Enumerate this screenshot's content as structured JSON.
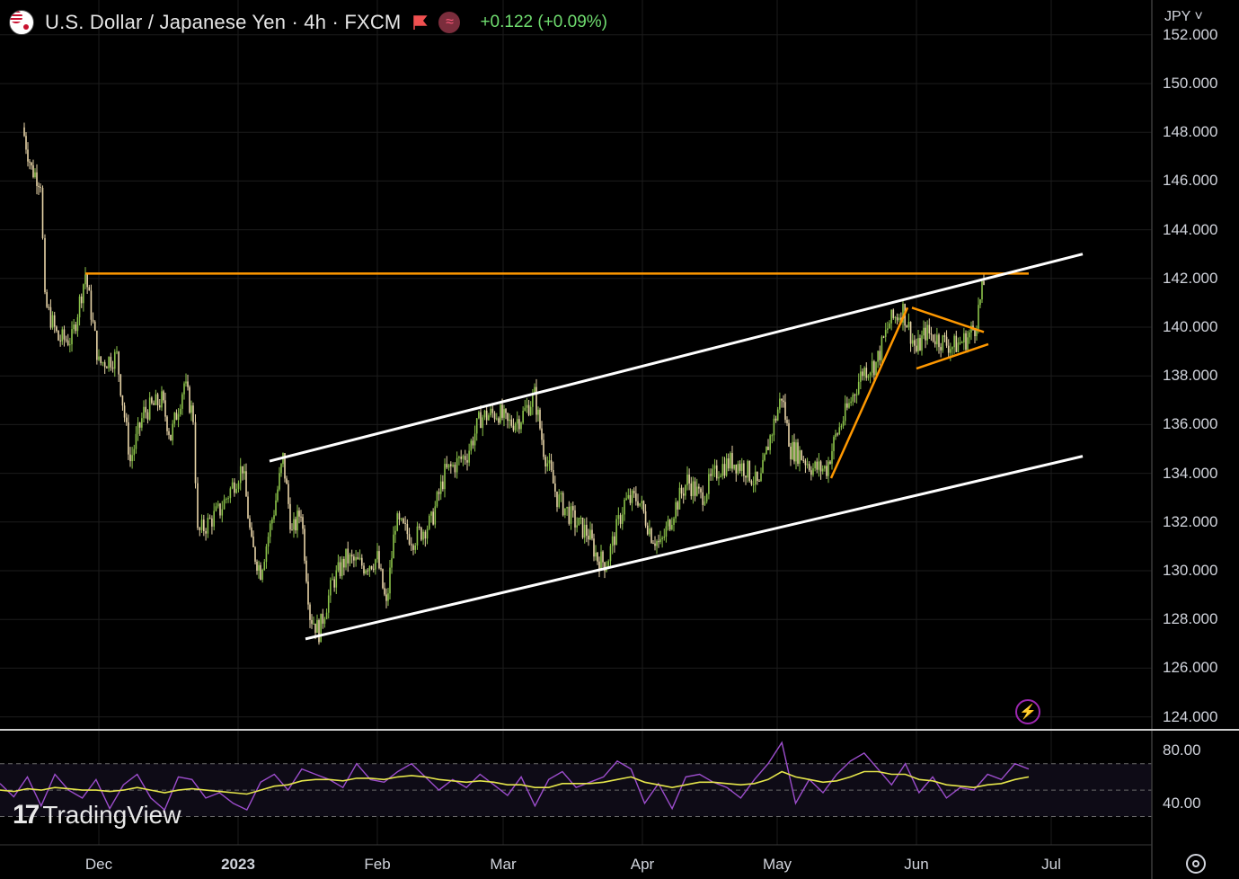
{
  "header": {
    "title": "U.S. Dollar / Japanese Yen · 4h · FXCM",
    "change": "+0.122 (+0.09%)",
    "currency": "JPY",
    "currency_chevron": "˅",
    "flag_icon": "flag-icon",
    "indicator_icon": "wave-icon"
  },
  "colors": {
    "background": "#000000",
    "up_candle": "#8bc34a",
    "down_candle": "#e8d5a8",
    "channel_lines": "#ffffff",
    "pattern_lines": "#ff9800",
    "rsi_line": "#9c4dcc",
    "rsi_ma": "#e5e54b",
    "change_text": "#6fdc6f"
  },
  "price_axis": {
    "labels": [
      "152.000",
      "150.000",
      "148.000",
      "146.000",
      "144.000",
      "142.000",
      "140.000",
      "138.000",
      "136.000",
      "134.000",
      "132.000",
      "130.000",
      "128.000",
      "126.000",
      "124.000"
    ]
  },
  "rsi_axis": {
    "labels": [
      "80.00",
      "40.00"
    ]
  },
  "time_axis": {
    "labels": [
      "Dec",
      "2023",
      "Feb",
      "Mar",
      "Apr",
      "May",
      "Jun",
      "Jul"
    ]
  },
  "branding": {
    "logo_mark": "17",
    "logo_text": "TradingView"
  },
  "chart_data": [
    {
      "type": "line",
      "title": "U.S. Dollar / Japanese Yen · 4h · FXCM",
      "xlabel": "",
      "ylabel": "",
      "x_labels": [
        "Dec",
        "2023",
        "Feb",
        "Mar",
        "Apr",
        "May",
        "Jun",
        "Jul"
      ],
      "ylim": [
        123.5,
        152.5
      ],
      "grid": true,
      "series": [
        {
          "values": [
            {
              "x": "2022-11-14",
              "y": 148.2
            },
            {
              "x": "2022-11-16",
              "y": 146.5
            },
            {
              "x": "2022-11-18",
              "y": 146.0
            },
            {
              "x": "2022-11-19",
              "y": 141.0
            },
            {
              "x": "2022-11-22",
              "y": 139.5
            },
            {
              "x": "2022-11-25",
              "y": 139.5
            },
            {
              "x": "2022-11-28",
              "y": 142.2
            },
            {
              "x": "2022-12-01",
              "y": 138.5
            },
            {
              "x": "2022-12-05",
              "y": 138.8
            },
            {
              "x": "2022-12-08",
              "y": 134.5
            },
            {
              "x": "2022-12-11",
              "y": 136.5
            },
            {
              "x": "2022-12-15",
              "y": 137.0
            },
            {
              "x": "2022-12-17",
              "y": 135.5
            },
            {
              "x": "2022-12-20",
              "y": 137.7
            },
            {
              "x": "2022-12-22",
              "y": 136.3
            },
            {
              "x": "2022-12-23",
              "y": 131.5
            },
            {
              "x": "2022-12-28",
              "y": 132.5
            },
            {
              "x": "2023-01-02",
              "y": 134.3
            },
            {
              "x": "2023-01-04",
              "y": 131.0
            },
            {
              "x": "2023-01-06",
              "y": 130.0
            },
            {
              "x": "2023-01-09",
              "y": 132.5
            },
            {
              "x": "2023-01-11",
              "y": 134.6
            },
            {
              "x": "2023-01-13",
              "y": 131.5
            },
            {
              "x": "2023-01-15",
              "y": 132.5
            },
            {
              "x": "2023-01-17",
              "y": 128.2
            },
            {
              "x": "2023-01-19",
              "y": 127.5
            },
            {
              "x": "2023-01-22",
              "y": 129.5
            },
            {
              "x": "2023-01-25",
              "y": 130.5
            },
            {
              "x": "2023-01-29",
              "y": 130.2
            },
            {
              "x": "2023-02-01",
              "y": 130.5
            },
            {
              "x": "2023-02-03",
              "y": 128.5
            },
            {
              "x": "2023-02-05",
              "y": 132.0
            },
            {
              "x": "2023-02-09",
              "y": 131.3
            },
            {
              "x": "2023-02-13",
              "y": 132.0
            },
            {
              "x": "2023-02-16",
              "y": 134.0
            },
            {
              "x": "2023-02-21",
              "y": 134.8
            },
            {
              "x": "2023-02-24",
              "y": 136.3
            },
            {
              "x": "2023-02-28",
              "y": 136.5
            },
            {
              "x": "2023-03-02",
              "y": 136.0
            },
            {
              "x": "2023-03-05",
              "y": 136.3
            },
            {
              "x": "2023-03-08",
              "y": 137.2
            },
            {
              "x": "2023-03-10",
              "y": 135.0
            },
            {
              "x": "2023-03-13",
              "y": 133.0
            },
            {
              "x": "2023-03-17",
              "y": 132.0
            },
            {
              "x": "2023-03-20",
              "y": 131.5
            },
            {
              "x": "2023-03-22",
              "y": 130.5
            },
            {
              "x": "2023-03-24",
              "y": 130.3
            },
            {
              "x": "2023-03-28",
              "y": 132.8
            },
            {
              "x": "2023-03-31",
              "y": 133.0
            },
            {
              "x": "2023-04-03",
              "y": 131.5
            },
            {
              "x": "2023-04-05",
              "y": 131.0
            },
            {
              "x": "2023-04-08",
              "y": 132.5
            },
            {
              "x": "2023-04-11",
              "y": 133.7
            },
            {
              "x": "2023-04-14",
              "y": 133.0
            },
            {
              "x": "2023-04-18",
              "y": 134.2
            },
            {
              "x": "2023-04-21",
              "y": 134.5
            },
            {
              "x": "2023-04-24",
              "y": 134.2
            },
            {
              "x": "2023-04-27",
              "y": 133.4
            },
            {
              "x": "2023-04-29",
              "y": 135.2
            },
            {
              "x": "2023-05-02",
              "y": 137.2
            },
            {
              "x": "2023-05-04",
              "y": 135.0
            },
            {
              "x": "2023-05-06",
              "y": 134.8
            },
            {
              "x": "2023-05-09",
              "y": 134.2
            },
            {
              "x": "2023-05-12",
              "y": 134.2
            },
            {
              "x": "2023-05-14",
              "y": 135.5
            },
            {
              "x": "2023-05-17",
              "y": 136.8
            },
            {
              "x": "2023-05-20",
              "y": 138.2
            },
            {
              "x": "2023-05-23",
              "y": 138.5
            },
            {
              "x": "2023-05-26",
              "y": 140.2
            },
            {
              "x": "2023-05-29",
              "y": 140.7
            },
            {
              "x": "2023-06-01",
              "y": 139.0
            },
            {
              "x": "2023-06-03",
              "y": 139.8
            },
            {
              "x": "2023-06-06",
              "y": 139.5
            },
            {
              "x": "2023-06-09",
              "y": 139.2
            },
            {
              "x": "2023-06-12",
              "y": 139.5
            },
            {
              "x": "2023-06-14",
              "y": 140.0
            },
            {
              "x": "2023-06-16",
              "y": 141.8
            }
          ]
        }
      ],
      "annotations": [
        {
          "kind": "horizontal-line",
          "color": "orange",
          "y": 142.2,
          "x_from": "2022-11-28",
          "x_to": "2023-06-26"
        },
        {
          "kind": "channel-upper",
          "color": "white",
          "from": {
            "x": "2023-01-08",
            "y": 134.5
          },
          "to": {
            "x": "2023-07-08",
            "y": 143.0
          }
        },
        {
          "kind": "channel-lower",
          "color": "white",
          "from": {
            "x": "2023-01-16",
            "y": 127.2
          },
          "to": {
            "x": "2023-07-08",
            "y": 134.7
          }
        },
        {
          "kind": "trend-line",
          "color": "orange",
          "from": {
            "x": "2023-05-13",
            "y": 133.8
          },
          "to": {
            "x": "2023-05-30",
            "y": 140.8
          }
        },
        {
          "kind": "triangle-upper",
          "color": "orange",
          "from": {
            "x": "2023-05-31",
            "y": 140.8
          },
          "to": {
            "x": "2023-06-16",
            "y": 139.8
          }
        },
        {
          "kind": "triangle-lower",
          "color": "orange",
          "from": {
            "x": "2023-06-01",
            "y": 138.3
          },
          "to": {
            "x": "2023-06-17",
            "y": 139.3
          }
        }
      ]
    },
    {
      "type": "line",
      "title": "",
      "ylim": [
        25,
        90
      ],
      "reference_lines": [
        70,
        50,
        30
      ],
      "series": [
        {
          "name": "",
          "values": [
            55,
            45,
            60,
            38,
            62,
            50,
            44,
            58,
            36,
            54,
            62,
            44,
            35,
            60,
            58,
            44,
            48,
            40,
            35,
            56,
            62,
            50,
            66,
            62,
            58,
            52,
            70,
            58,
            56,
            64,
            70,
            60,
            50,
            58,
            52,
            62,
            54,
            46,
            60,
            38,
            58,
            64,
            52,
            56,
            60,
            72,
            66,
            40,
            55,
            36,
            60,
            62,
            56,
            52,
            44,
            58,
            70,
            86,
            40,
            58,
            48,
            62,
            72,
            78,
            66,
            54,
            70,
            48,
            60,
            44,
            52,
            50,
            62,
            58,
            70,
            66
          ]
        },
        {
          "name": "",
          "values": [
            50,
            49,
            51,
            50,
            52,
            51,
            50,
            50,
            49,
            50,
            52,
            50,
            48,
            50,
            51,
            50,
            49,
            48,
            47,
            50,
            53,
            54,
            57,
            58,
            58,
            57,
            59,
            59,
            58,
            60,
            61,
            60,
            58,
            57,
            56,
            57,
            56,
            54,
            54,
            52,
            52,
            55,
            55,
            55,
            56,
            58,
            60,
            56,
            54,
            52,
            54,
            56,
            56,
            55,
            54,
            55,
            58,
            64,
            60,
            58,
            56,
            57,
            60,
            64,
            64,
            62,
            62,
            58,
            57,
            54,
            53,
            52,
            54,
            55,
            58,
            60
          ]
        }
      ]
    }
  ]
}
